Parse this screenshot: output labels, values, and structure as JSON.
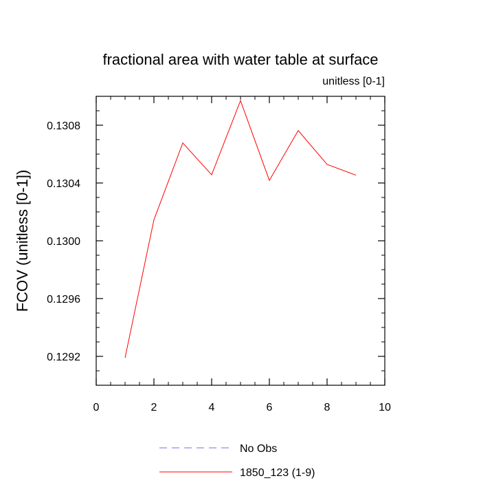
{
  "chart_data": {
    "type": "line",
    "title": "fractional area with water table at surface",
    "subtitle": "unitless [0-1]",
    "xlabel": "",
    "ylabel": "FCOV  (unitless [0-1])",
    "xlim": [
      0,
      10
    ],
    "ylim": [
      0.129,
      0.131
    ],
    "x_ticks": [
      0,
      2,
      4,
      6,
      8,
      10
    ],
    "x_tick_labels": [
      "0",
      "2",
      "4",
      "6",
      "8",
      "10"
    ],
    "y_ticks": [
      0.1292,
      0.1296,
      0.13,
      0.1304,
      0.1308
    ],
    "y_tick_labels": [
      "0.1292",
      "0.1296",
      "0.1300",
      "0.1304",
      "0.1308"
    ],
    "grid": false,
    "legend_position": "bottom",
    "series": [
      {
        "name": "1850_123 (1-9)",
        "color": "#ff0000",
        "dash": "solid",
        "x": [
          1,
          2,
          3,
          4,
          5,
          6,
          7,
          8,
          9
        ],
        "values": [
          0.12919,
          0.130145,
          0.130677,
          0.130457,
          0.13097,
          0.130418,
          0.130763,
          0.130529,
          0.130454
        ]
      }
    ],
    "legend": [
      {
        "label": "No Obs",
        "color": "#6f6fe6",
        "dash": "dashed"
      },
      {
        "label": "1850_123 (1-9)",
        "color": "#ff0000",
        "dash": "solid"
      }
    ]
  }
}
